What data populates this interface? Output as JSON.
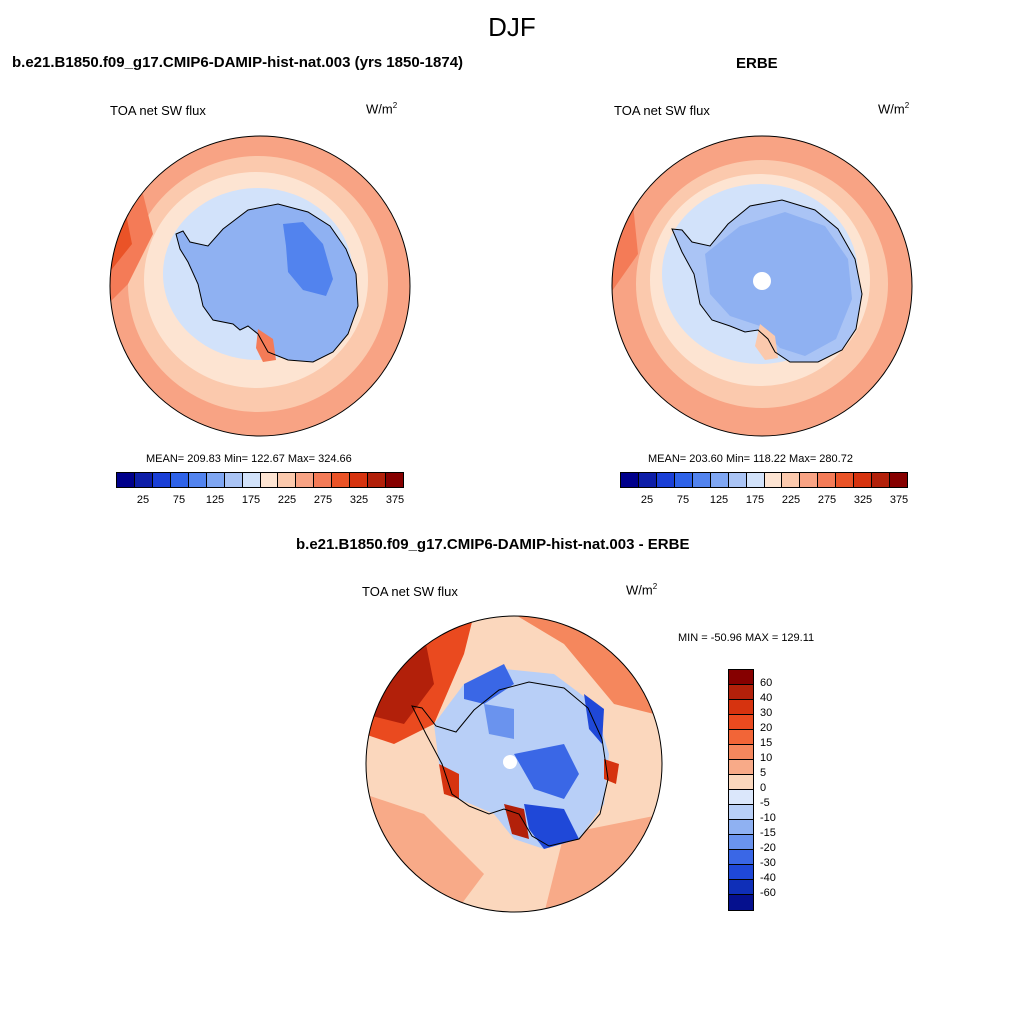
{
  "title": "DJF",
  "panels": [
    {
      "title": "b.e21.B1850.f09_g17.CMIP6-DAMIP-hist-nat.003 (yrs 1850-1874)",
      "variable": "TOA net SW flux",
      "units_base": "W/m",
      "units_exp": "2",
      "stats": "MEAN= 209.83  Min= 122.67  Max= 324.66"
    },
    {
      "title": "ERBE",
      "variable": "TOA net SW flux",
      "units_base": "W/m",
      "units_exp": "2",
      "stats": "MEAN= 203.60  Min= 118.22  Max= 280.72"
    },
    {
      "title": "b.e21.B1850.f09_g17.CMIP6-DAMIP-hist-nat.003 - ERBE",
      "variable": "TOA net SW flux",
      "units_base": "W/m",
      "units_exp": "2",
      "stats": "MIN = -50.96 MAX = 129.11"
    }
  ],
  "colorbar_abs": {
    "colors": [
      "#00008b",
      "#0d1ea8",
      "#1a3fd6",
      "#2e62e8",
      "#5283ee",
      "#7fa6f2",
      "#aac4f5",
      "#d2e2fa",
      "#fde4d2",
      "#fbc9ad",
      "#f8a384",
      "#f47b57",
      "#ea5327",
      "#d6330f",
      "#b2200a",
      "#860000"
    ],
    "tick_labels": [
      "25",
      "75",
      "125",
      "175",
      "225",
      "275",
      "325",
      "375"
    ]
  },
  "colorbar_diff": {
    "colors": [
      "#860000",
      "#b2200a",
      "#d6330f",
      "#ea4a1f",
      "#f26537",
      "#f5875d",
      "#f8aa88",
      "#fbd7bd",
      "#dbe7fb",
      "#b8cff7",
      "#8fb1f2",
      "#6a93ee",
      "#3a67e6",
      "#1f48d8",
      "#0f2fb8",
      "#05108e"
    ],
    "labels": [
      "60",
      "40",
      "30",
      "20",
      "15",
      "10",
      "5",
      "0",
      "-5",
      "-10",
      "-15",
      "-20",
      "-30",
      "-40",
      "-60"
    ]
  }
}
